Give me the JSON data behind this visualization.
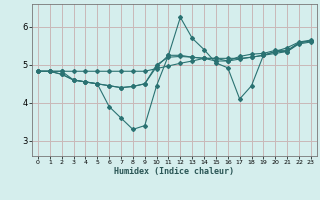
{
  "xlabel": "Humidex (Indice chaleur)",
  "xlim": [
    -0.5,
    23.5
  ],
  "ylim": [
    2.6,
    6.6
  ],
  "yticks": [
    3,
    4,
    5,
    6
  ],
  "xticks": [
    0,
    1,
    2,
    3,
    4,
    5,
    6,
    7,
    8,
    9,
    10,
    11,
    12,
    13,
    14,
    15,
    16,
    17,
    18,
    19,
    20,
    21,
    22,
    23
  ],
  "bg_color": "#d5eeed",
  "grid_color": "#c9b8b8",
  "line_color": "#2a7272",
  "lines": [
    {
      "x": [
        0,
        1,
        2,
        3,
        4,
        5,
        6,
        7,
        8,
        9,
        10,
        11,
        12,
        13,
        14,
        15,
        16,
        17,
        18,
        19,
        20,
        21,
        22,
        23
      ],
      "y": [
        4.83,
        4.83,
        4.83,
        4.83,
        4.83,
        4.83,
        4.83,
        4.83,
        4.83,
        4.83,
        4.9,
        4.97,
        5.04,
        5.1,
        5.17,
        5.17,
        5.17,
        5.17,
        5.2,
        5.25,
        5.3,
        5.35,
        5.55,
        5.6
      ]
    },
    {
      "x": [
        0,
        1,
        2,
        3,
        4,
        5,
        6,
        7,
        8,
        9,
        10,
        11,
        12,
        13,
        14,
        15,
        16,
        17,
        18,
        19,
        20,
        21,
        22,
        23
      ],
      "y": [
        4.83,
        4.83,
        4.83,
        4.6,
        4.55,
        4.5,
        3.9,
        3.6,
        3.3,
        3.4,
        4.45,
        5.25,
        6.25,
        5.7,
        5.4,
        5.05,
        4.92,
        4.1,
        4.45,
        5.25,
        5.35,
        5.45,
        5.6,
        5.65
      ]
    },
    {
      "x": [
        0,
        1,
        2,
        3,
        4,
        5,
        6,
        7,
        8,
        9,
        10,
        11,
        12,
        13,
        14,
        15,
        16,
        17,
        18,
        19,
        20,
        21,
        22,
        23
      ],
      "y": [
        4.83,
        4.83,
        4.75,
        4.6,
        4.55,
        4.5,
        4.45,
        4.4,
        4.43,
        4.5,
        4.95,
        5.25,
        5.25,
        5.2,
        5.17,
        5.1,
        5.1,
        5.15,
        5.2,
        5.25,
        5.35,
        5.35,
        5.58,
        5.63
      ]
    },
    {
      "x": [
        0,
        1,
        2,
        3,
        4,
        5,
        6,
        7,
        8,
        9,
        10,
        11,
        12,
        13,
        14,
        15,
        16,
        17,
        18,
        19,
        20,
        21,
        22,
        23
      ],
      "y": [
        4.83,
        4.83,
        4.75,
        4.6,
        4.55,
        4.5,
        4.45,
        4.4,
        4.43,
        4.5,
        5.0,
        5.2,
        5.22,
        5.2,
        5.17,
        5.17,
        5.1,
        5.22,
        5.28,
        5.3,
        5.38,
        5.38,
        5.58,
        5.63
      ]
    }
  ]
}
